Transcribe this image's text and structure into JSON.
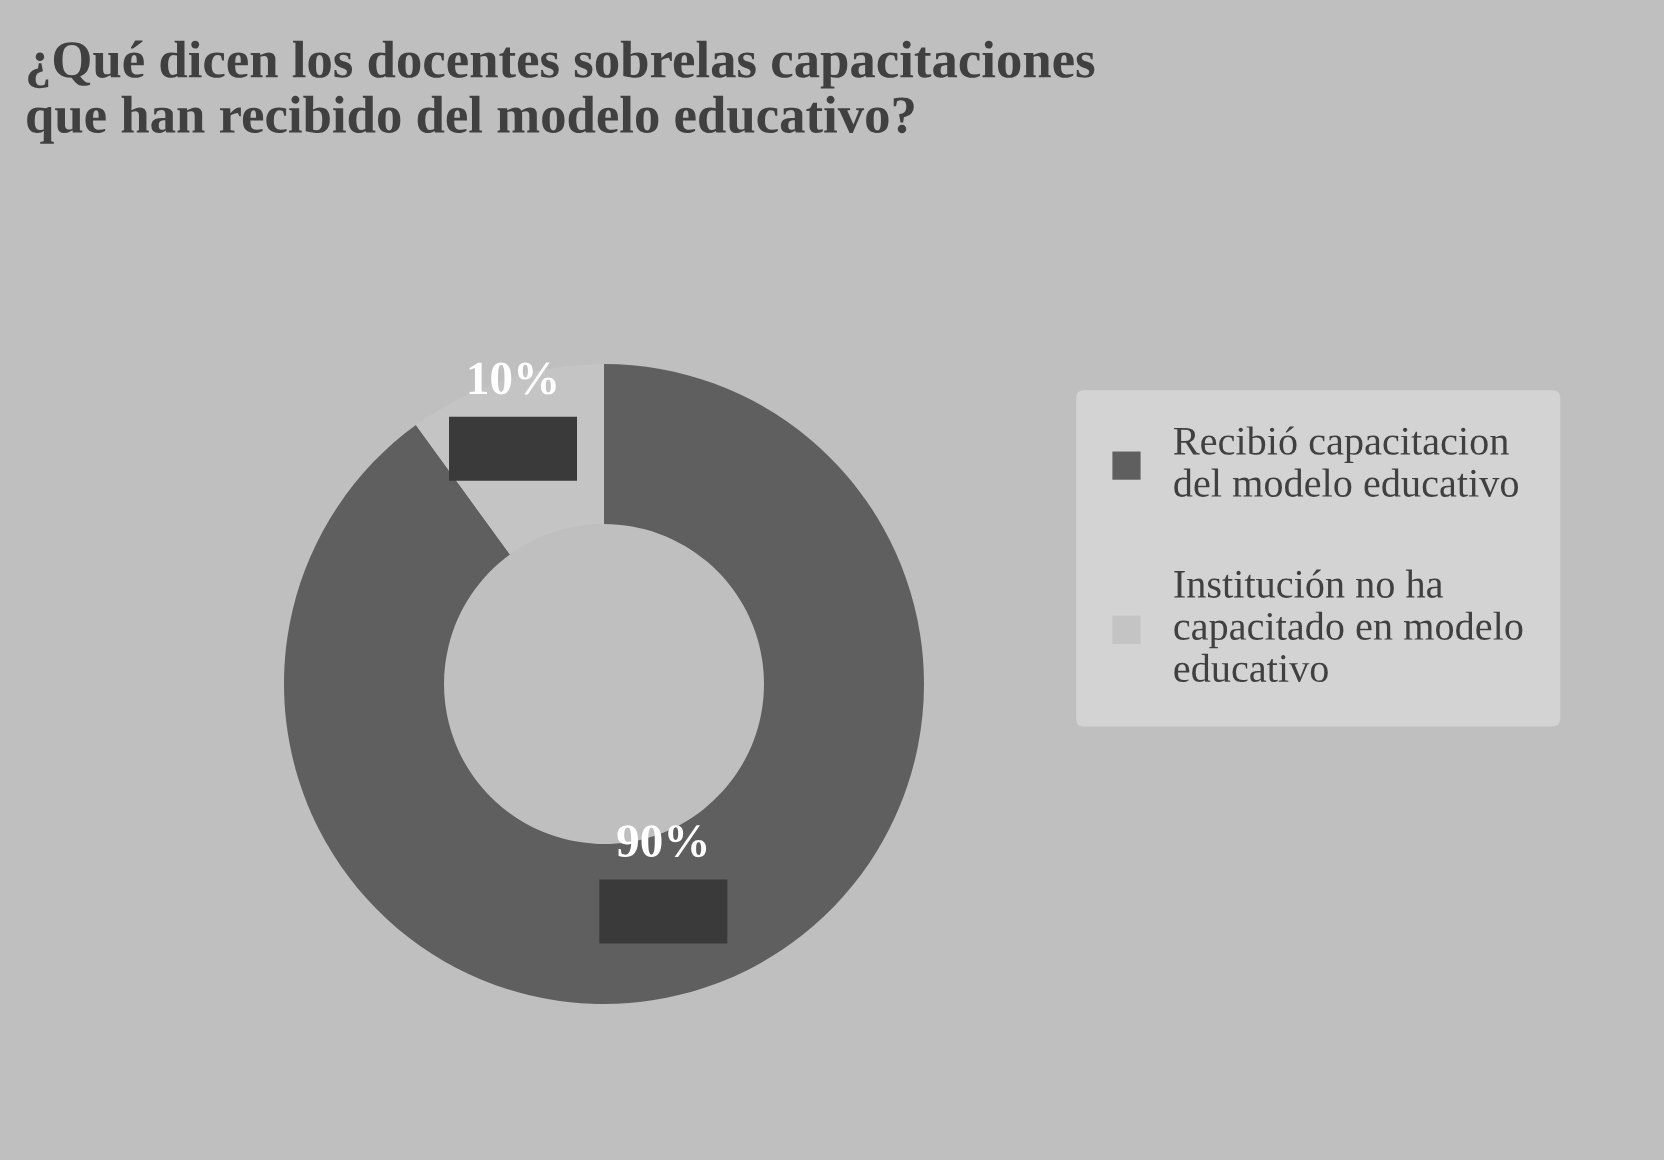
{
  "chart_data": {
    "type": "donut",
    "title": "¿Qué dicen los docentes sobrelas capacitaciones\nque han recibido del modelo educativo?",
    "categories": [
      "Recibió capacitacion\ndel modelo educativo",
      "Institución no ha\ncapacitado en modelo\neducativo"
    ],
    "values": [
      90,
      10
    ],
    "colors": [
      "#5f5f5f",
      "#c4c4c4"
    ],
    "value_labels": [
      "90%",
      "10%"
    ],
    "legend": "right"
  }
}
